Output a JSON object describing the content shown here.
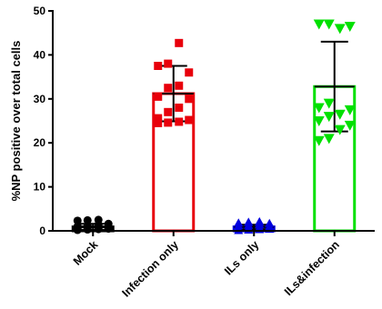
{
  "chart_data": {
    "type": "bar",
    "ylabel": "%NP positive over total cells",
    "ylim": [
      0,
      50
    ],
    "yticks": [
      "0",
      "10",
      "20",
      "30",
      "40",
      "50"
    ],
    "categories": [
      "Mock",
      "Infection only",
      "ILs only",
      "ILs&infection"
    ],
    "colors": [
      "#000000",
      "#e8000b",
      "#0000e0",
      "#00e000"
    ],
    "markers": [
      "circle",
      "square",
      "triangle-up",
      "triangle-down"
    ],
    "means": [
      0.9,
      31.2,
      0.9,
      32.8
    ],
    "errors": [
      0.7,
      6.3,
      0.5,
      10.2
    ],
    "points": [
      [
        0.2,
        0.3,
        0.4,
        0.5,
        0.6,
        0.7,
        0.8,
        0.9,
        1.0,
        1.2,
        1.4,
        1.6,
        2.3,
        2.4,
        2.5
      ],
      [
        24.5,
        24.6,
        24.8,
        25.2,
        25.6,
        27.0,
        28.0,
        30.0,
        30.5,
        32.5,
        33.0,
        36.0,
        37.5,
        38.0,
        42.7
      ],
      [
        0.1,
        0.2,
        0.3,
        0.4,
        0.5,
        0.7,
        0.8,
        1.0,
        1.2,
        1.3,
        1.5,
        1.7,
        1.8,
        2.0,
        2.1
      ],
      [
        20.5,
        21.0,
        23.0,
        24.0,
        25.0,
        26.0,
        26.5,
        27.5,
        28.0,
        29.0,
        46.0,
        46.5,
        47.0,
        47.0
      ]
    ]
  }
}
